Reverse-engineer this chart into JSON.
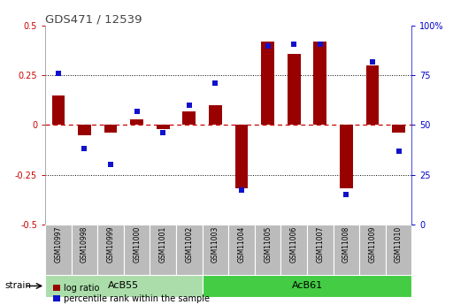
{
  "title": "GDS471 / 12539",
  "samples": [
    "GSM10997",
    "GSM10998",
    "GSM10999",
    "GSM11000",
    "GSM11001",
    "GSM11002",
    "GSM11003",
    "GSM11004",
    "GSM11005",
    "GSM11006",
    "GSM11007",
    "GSM11008",
    "GSM11009",
    "GSM11010"
  ],
  "log_ratio": [
    0.15,
    -0.05,
    -0.04,
    0.03,
    -0.02,
    0.07,
    0.1,
    -0.32,
    0.42,
    0.36,
    0.42,
    -0.32,
    0.3,
    -0.04
  ],
  "percentile_rank": [
    76,
    38,
    30,
    57,
    46,
    60,
    71,
    17,
    90,
    91,
    91,
    15,
    82,
    37
  ],
  "ylim_left": [
    -0.5,
    0.5
  ],
  "ylim_right": [
    0,
    100
  ],
  "bar_color": "#990000",
  "dot_color": "#1111CC",
  "dashed_color": "#CC0000",
  "tick_label_area_color": "#BBBBBB",
  "group_colors": [
    "#AADDAA",
    "#44CC44"
  ],
  "group_border_color": "#FFFFFF",
  "title_color": "#444444",
  "right_axis_color": "#0000CC",
  "left_axis_color": "#CC0000",
  "dotted_color": "#000000",
  "strain_label": "strain",
  "legend_log_ratio": "log ratio",
  "legend_percentile": "percentile rank within the sample",
  "groups": [
    {
      "label": "AcB55",
      "start": 0,
      "end": 5
    },
    {
      "label": "AcB61",
      "start": 6,
      "end": 13
    }
  ]
}
